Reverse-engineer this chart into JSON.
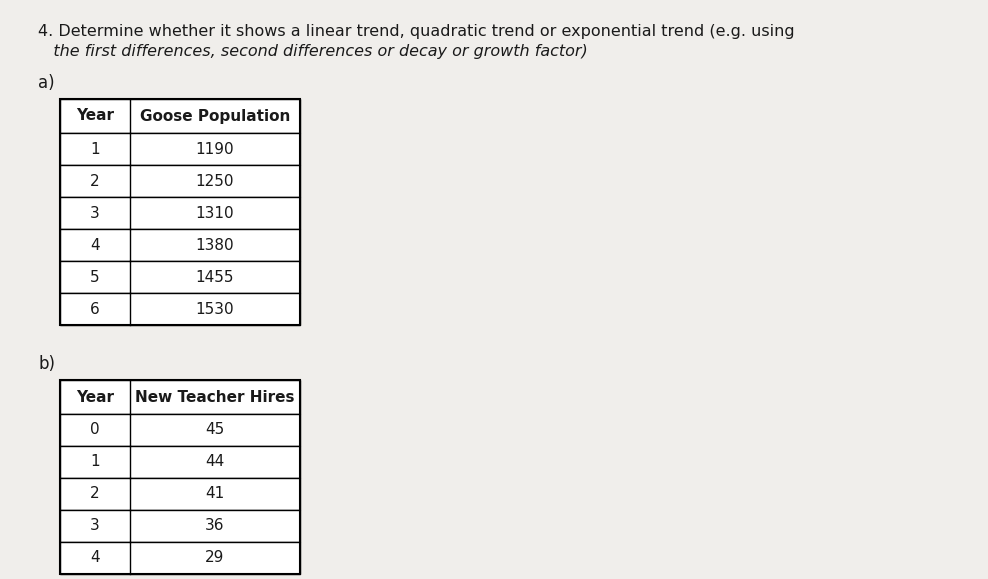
{
  "title_line1": "4. Determine whether it shows a linear trend, quadratic trend or exponential trend (e.g. using",
  "title_line2": "   the first differences, second differences or decay or growth factor)",
  "label_a": "a)",
  "label_b": "b)",
  "table_a_headers": [
    "Year",
    "Goose Population"
  ],
  "table_a_years": [
    "1",
    "2",
    "3",
    "4",
    "5",
    "6"
  ],
  "table_a_values": [
    "1190",
    "1250",
    "1310",
    "1380",
    "1455",
    "1530"
  ],
  "table_b_headers": [
    "Year",
    "New Teacher Hires"
  ],
  "table_b_years": [
    "0",
    "1",
    "2",
    "3",
    "4"
  ],
  "table_b_values": [
    "45",
    "44",
    "41",
    "36",
    "29"
  ],
  "bg_color": "#f0eeeb",
  "table_bg": "#ffffff",
  "table_border": "#000000",
  "header_fontsize": 11,
  "data_fontsize": 11,
  "title_fontsize": 11.5,
  "label_fontsize": 12
}
